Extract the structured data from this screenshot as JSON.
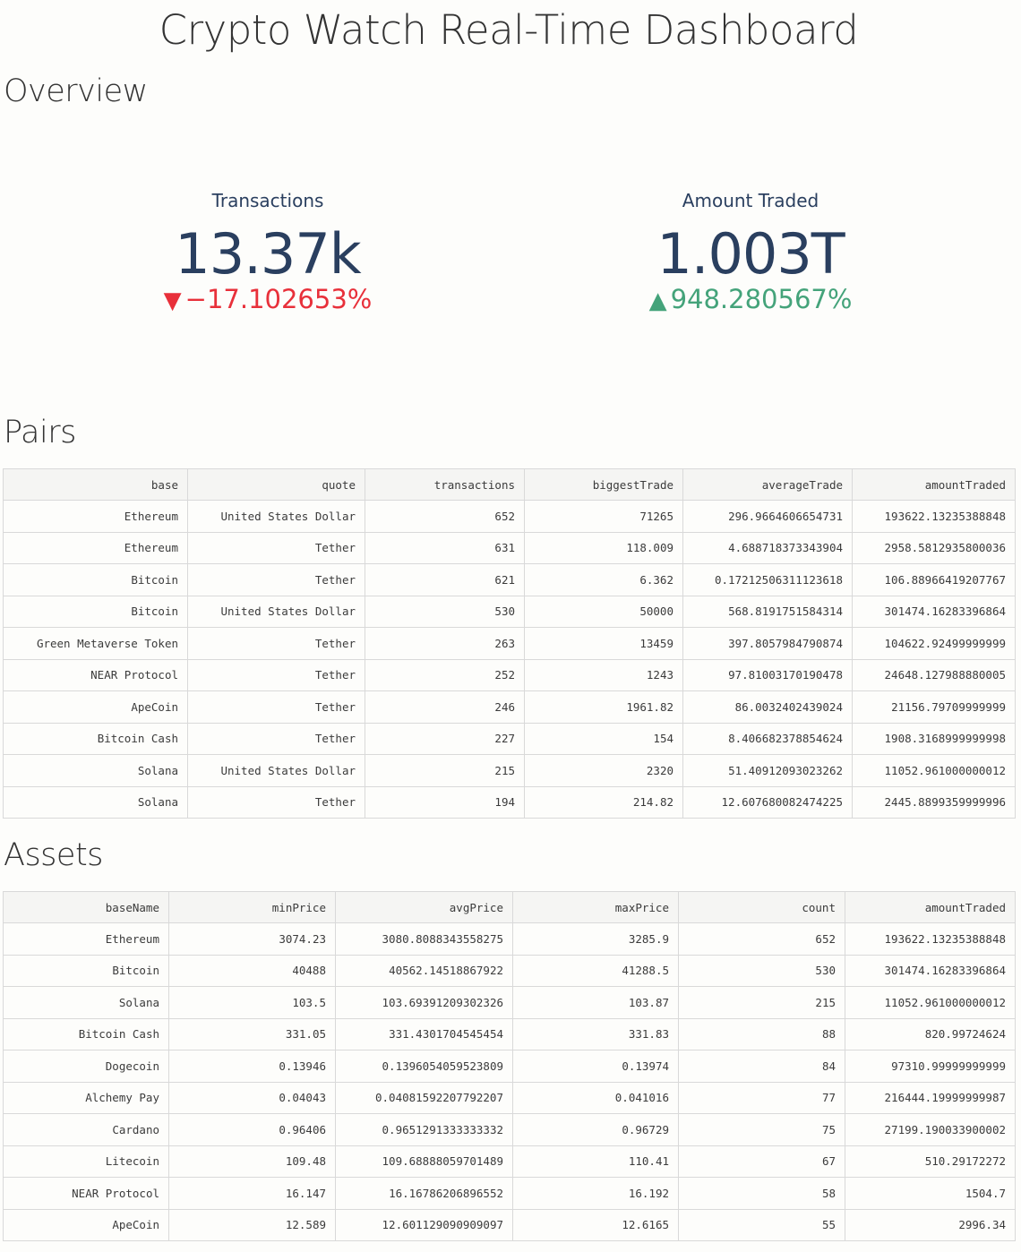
{
  "page_title": "Crypto Watch Real-Time Dashboard",
  "overview": {
    "title": "Overview",
    "kpis": {
      "transactions": {
        "label": "Transactions",
        "value": "13.37k",
        "delta": "−17.102653%",
        "direction": "down",
        "color": "#e8303a"
      },
      "amount_traded": {
        "label": "Amount Traded",
        "value": "1.003T",
        "delta": "948.280567%",
        "direction": "up",
        "color": "#44a37a"
      }
    }
  },
  "pairs": {
    "title": "Pairs",
    "columns": [
      "base",
      "quote",
      "transactions",
      "biggestTrade",
      "averageTrade",
      "amountTraded"
    ],
    "rows": [
      [
        "Ethereum",
        "United States Dollar",
        "652",
        "71265",
        "296.9664606654731",
        "193622.13235388848"
      ],
      [
        "Ethereum",
        "Tether",
        "631",
        "118.009",
        "4.688718373343904",
        "2958.5812935800036"
      ],
      [
        "Bitcoin",
        "Tether",
        "621",
        "6.362",
        "0.17212506311123618",
        "106.88966419207767"
      ],
      [
        "Bitcoin",
        "United States Dollar",
        "530",
        "50000",
        "568.8191751584314",
        "301474.16283396864"
      ],
      [
        "Green Metaverse Token",
        "Tether",
        "263",
        "13459",
        "397.8057984790874",
        "104622.92499999999"
      ],
      [
        "NEAR Protocol",
        "Tether",
        "252",
        "1243",
        "97.81003170190478",
        "24648.127988880005"
      ],
      [
        "ApeCoin",
        "Tether",
        "246",
        "1961.82",
        "86.0032402439024",
        "21156.79709999999"
      ],
      [
        "Bitcoin Cash",
        "Tether",
        "227",
        "154",
        "8.406682378854624",
        "1908.3168999999998"
      ],
      [
        "Solana",
        "United States Dollar",
        "215",
        "2320",
        "51.40912093023262",
        "11052.961000000012"
      ],
      [
        "Solana",
        "Tether",
        "194",
        "214.82",
        "12.607680082474225",
        "2445.8899359999996"
      ]
    ]
  },
  "assets": {
    "title": "Assets",
    "columns": [
      "baseName",
      "minPrice",
      "avgPrice",
      "maxPrice",
      "count",
      "amountTraded"
    ],
    "rows": [
      [
        "Ethereum",
        "3074.23",
        "3080.8088343558275",
        "3285.9",
        "652",
        "193622.13235388848"
      ],
      [
        "Bitcoin",
        "40488",
        "40562.14518867922",
        "41288.5",
        "530",
        "301474.16283396864"
      ],
      [
        "Solana",
        "103.5",
        "103.69391209302326",
        "103.87",
        "215",
        "11052.961000000012"
      ],
      [
        "Bitcoin Cash",
        "331.05",
        "331.4301704545454",
        "331.83",
        "88",
        "820.99724624"
      ],
      [
        "Dogecoin",
        "0.13946",
        "0.1396054059523809",
        "0.13974",
        "84",
        "97310.99999999999"
      ],
      [
        "Alchemy Pay",
        "0.04043",
        "0.04081592207792207",
        "0.041016",
        "77",
        "216444.19999999987"
      ],
      [
        "Cardano",
        "0.96406",
        "0.9651291333333332",
        "0.96729",
        "75",
        "27199.190033900002"
      ],
      [
        "Litecoin",
        "109.48",
        "109.68888059701489",
        "110.41",
        "67",
        "510.29172272"
      ],
      [
        "NEAR Protocol",
        "16.147",
        "16.16786206896552",
        "16.192",
        "58",
        "1504.7"
      ],
      [
        "ApeCoin",
        "12.589",
        "12.601129090909097",
        "12.6165",
        "55",
        "2996.34"
      ]
    ]
  }
}
